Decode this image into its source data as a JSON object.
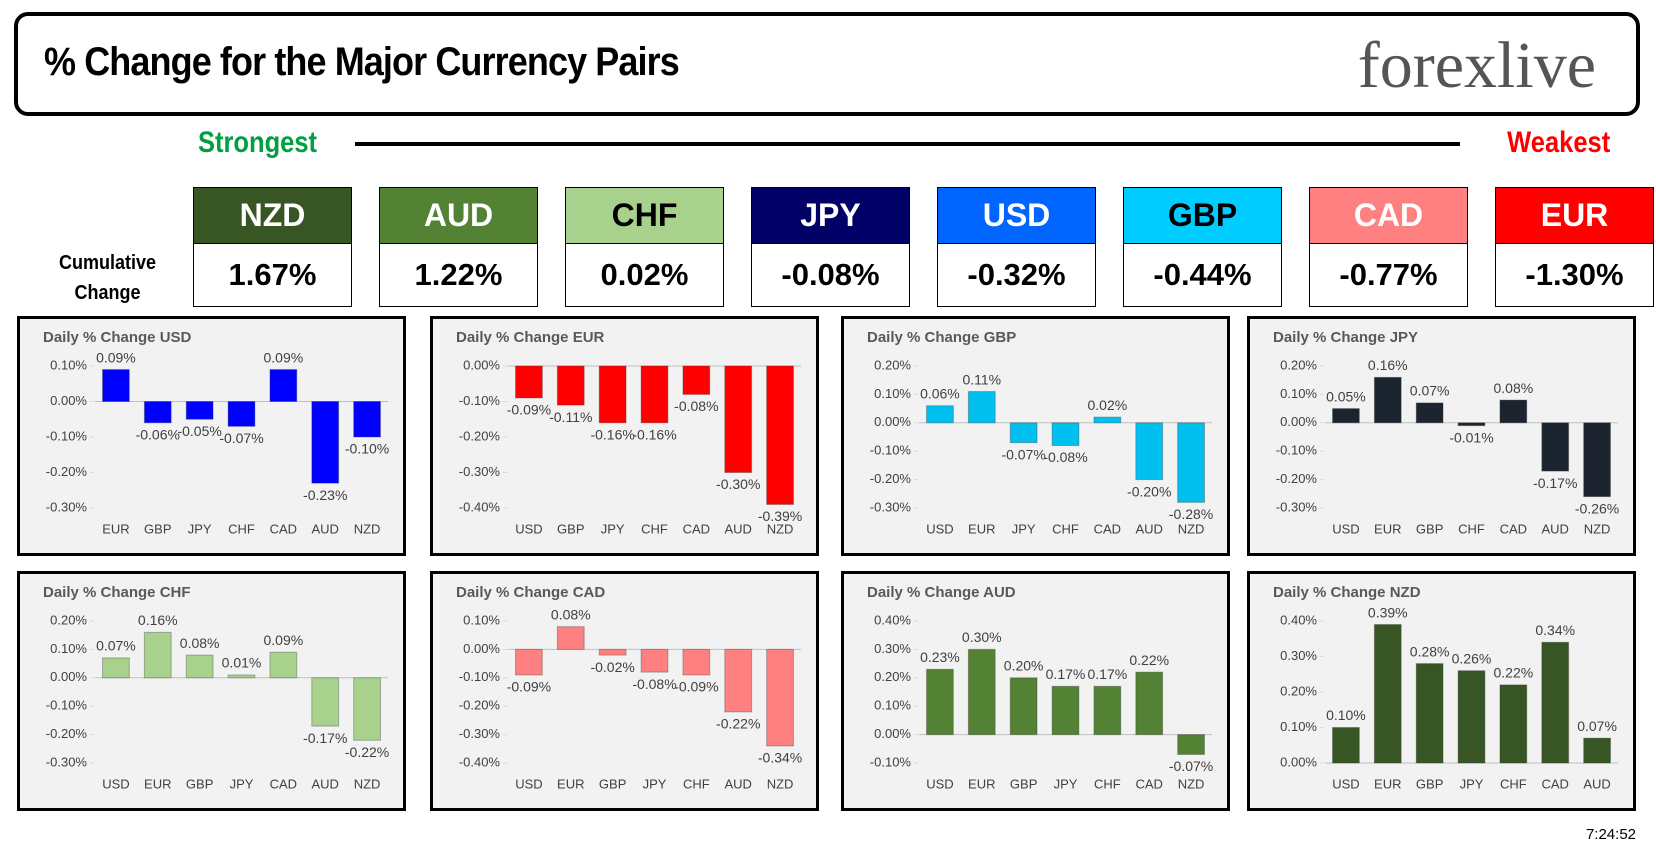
{
  "header": {
    "title": "% Change for the Major Currency Pairs",
    "logo": "forexlive"
  },
  "strength": {
    "strongest": "Strongest",
    "weakest": "Weakest",
    "row_label": "Cumulative Change",
    "currencies": [
      {
        "name": "NZD",
        "value": "1.67%",
        "color": "#375623",
        "text_color": "#ffffff"
      },
      {
        "name": "AUD",
        "value": "1.22%",
        "color": "#548235",
        "text_color": "#ffffff"
      },
      {
        "name": "CHF",
        "value": "0.02%",
        "color": "#a9d18e",
        "text_color": "#000000"
      },
      {
        "name": "JPY",
        "value": "-0.08%",
        "color": "#000066",
        "text_color": "#ffffff"
      },
      {
        "name": "USD",
        "value": "-0.32%",
        "color": "#0066ff",
        "text_color": "#ffffff"
      },
      {
        "name": "GBP",
        "value": "-0.44%",
        "color": "#00ccff",
        "text_color": "#000000"
      },
      {
        "name": "CAD",
        "value": "-0.77%",
        "color": "#ff8080",
        "text_color": "#ffffff"
      },
      {
        "name": "EUR",
        "value": "-1.30%",
        "color": "#ff0000",
        "text_color": "#ffffff"
      }
    ]
  },
  "chart_data": [
    {
      "type": "bar",
      "title": "Daily % Change USD",
      "color": "#0000ff",
      "categories": [
        "EUR",
        "GBP",
        "JPY",
        "CHF",
        "CAD",
        "AUD",
        "NZD"
      ],
      "values": [
        0.09,
        -0.06,
        -0.05,
        -0.07,
        0.09,
        -0.23,
        -0.1
      ],
      "value_labels": [
        "0.09%",
        "-0.06%",
        "-0.05%",
        "-0.07%",
        "0.09%",
        "-0.23%",
        "-0.10%"
      ],
      "ylim": [
        -0.3,
        0.1
      ],
      "yticks": [
        {
          "value": 0.1,
          "label": "0.10%"
        },
        {
          "value": 0,
          "label": "0.00%"
        },
        {
          "value": -0.1,
          "label": "-0.10%"
        },
        {
          "value": -0.2,
          "label": "-0.20%"
        },
        {
          "value": -0.3,
          "label": "-0.30%"
        }
      ]
    },
    {
      "type": "bar",
      "title": "Daily % Change EUR",
      "color": "#ff0000",
      "categories": [
        "USD",
        "GBP",
        "JPY",
        "CHF",
        "CAD",
        "AUD",
        "NZD"
      ],
      "values": [
        -0.09,
        -0.11,
        -0.16,
        -0.16,
        -0.08,
        -0.3,
        -0.39
      ],
      "value_labels": [
        "-0.09%",
        "-0.11%",
        "-0.16%",
        "-0.16%",
        "-0.08%",
        "-0.30%",
        "-0.39%"
      ],
      "ylim": [
        -0.4,
        0
      ],
      "yticks": [
        {
          "value": 0,
          "label": "0.00%"
        },
        {
          "value": -0.1,
          "label": "-0.10%"
        },
        {
          "value": -0.2,
          "label": "-0.20%"
        },
        {
          "value": -0.3,
          "label": "-0.30%"
        },
        {
          "value": -0.4,
          "label": "-0.40%"
        }
      ]
    },
    {
      "type": "bar",
      "title": "Daily % Change GBP",
      "color": "#00c0f0",
      "categories": [
        "USD",
        "EUR",
        "JPY",
        "CHF",
        "CAD",
        "AUD",
        "NZD"
      ],
      "values": [
        0.06,
        0.11,
        -0.07,
        -0.08,
        0.02,
        -0.2,
        -0.28
      ],
      "value_labels": [
        "0.06%",
        "0.11%",
        "-0.07%",
        "-0.08%",
        "0.02%",
        "-0.20%",
        "-0.28%"
      ],
      "ylim": [
        -0.3,
        0.2
      ],
      "yticks": [
        {
          "value": 0.2,
          "label": "0.20%"
        },
        {
          "value": 0.1,
          "label": "0.10%"
        },
        {
          "value": 0,
          "label": "0.00%"
        },
        {
          "value": -0.1,
          "label": "-0.10%"
        },
        {
          "value": -0.2,
          "label": "-0.20%"
        },
        {
          "value": -0.3,
          "label": "-0.30%"
        }
      ]
    },
    {
      "type": "bar",
      "title": "Daily % Change JPY",
      "color": "#1c2430",
      "categories": [
        "USD",
        "EUR",
        "GBP",
        "CHF",
        "CAD",
        "AUD",
        "NZD"
      ],
      "values": [
        0.05,
        0.16,
        0.07,
        -0.01,
        0.08,
        -0.17,
        -0.26
      ],
      "value_labels": [
        "0.05%",
        "0.16%",
        "0.07%",
        "-0.01%",
        "0.08%",
        "-0.17%",
        "-0.26%"
      ],
      "ylim": [
        -0.3,
        0.2
      ],
      "yticks": [
        {
          "value": 0.2,
          "label": "0.20%"
        },
        {
          "value": 0.1,
          "label": "0.10%"
        },
        {
          "value": 0,
          "label": "0.00%"
        },
        {
          "value": -0.1,
          "label": "-0.10%"
        },
        {
          "value": -0.2,
          "label": "-0.20%"
        },
        {
          "value": -0.3,
          "label": "-0.30%"
        }
      ]
    },
    {
      "type": "bar",
      "title": "Daily % Change CHF",
      "color": "#a9d18e",
      "categories": [
        "USD",
        "EUR",
        "GBP",
        "JPY",
        "CAD",
        "AUD",
        "NZD"
      ],
      "values": [
        0.07,
        0.16,
        0.08,
        0.01,
        0.09,
        -0.17,
        -0.22
      ],
      "value_labels": [
        "0.07%",
        "0.16%",
        "0.08%",
        "0.01%",
        "0.09%",
        "-0.17%",
        "-0.22%"
      ],
      "ylim": [
        -0.3,
        0.2
      ],
      "yticks": [
        {
          "value": 0.2,
          "label": "0.20%"
        },
        {
          "value": 0.1,
          "label": "0.10%"
        },
        {
          "value": 0,
          "label": "0.00%"
        },
        {
          "value": -0.1,
          "label": "-0.10%"
        },
        {
          "value": -0.2,
          "label": "-0.20%"
        },
        {
          "value": -0.3,
          "label": "-0.30%"
        }
      ]
    },
    {
      "type": "bar",
      "title": "Daily % Change CAD",
      "color": "#ff8080",
      "categories": [
        "USD",
        "EUR",
        "GBP",
        "JPY",
        "CHF",
        "AUD",
        "NZD"
      ],
      "values": [
        -0.09,
        0.08,
        -0.02,
        -0.08,
        -0.09,
        -0.22,
        -0.34
      ],
      "value_labels": [
        "-0.09%",
        "0.08%",
        "-0.02%",
        "-0.08%",
        "-0.09%",
        "-0.22%",
        "-0.34%"
      ],
      "ylim": [
        -0.4,
        0.1
      ],
      "yticks": [
        {
          "value": 0.1,
          "label": "0.10%"
        },
        {
          "value": 0,
          "label": "0.00%"
        },
        {
          "value": -0.1,
          "label": "-0.10%"
        },
        {
          "value": -0.2,
          "label": "-0.20%"
        },
        {
          "value": -0.3,
          "label": "-0.30%"
        },
        {
          "value": -0.4,
          "label": "-0.40%"
        }
      ]
    },
    {
      "type": "bar",
      "title": "Daily % Change AUD",
      "color": "#548235",
      "categories": [
        "USD",
        "EUR",
        "GBP",
        "JPY",
        "CHF",
        "CAD",
        "NZD"
      ],
      "values": [
        0.23,
        0.3,
        0.2,
        0.17,
        0.17,
        0.22,
        -0.07
      ],
      "value_labels": [
        "0.23%",
        "0.30%",
        "0.20%",
        "0.17%",
        "0.17%",
        "0.22%",
        "-0.07%"
      ],
      "ylim": [
        -0.1,
        0.4
      ],
      "yticks": [
        {
          "value": 0.4,
          "label": "0.40%"
        },
        {
          "value": 0.3,
          "label": "0.30%"
        },
        {
          "value": 0.2,
          "label": "0.20%"
        },
        {
          "value": 0.1,
          "label": "0.10%"
        },
        {
          "value": 0,
          "label": "0.00%"
        },
        {
          "value": -0.1,
          "label": "-0.10%"
        }
      ]
    },
    {
      "type": "bar",
      "title": "Daily % Change NZD",
      "color": "#375623",
      "categories": [
        "USD",
        "EUR",
        "GBP",
        "JPY",
        "CHF",
        "CAD",
        "AUD"
      ],
      "values": [
        0.1,
        0.39,
        0.28,
        0.26,
        0.22,
        0.34,
        0.07
      ],
      "value_labels": [
        "0.10%",
        "0.39%",
        "0.28%",
        "0.26%",
        "0.22%",
        "0.34%",
        "0.07%"
      ],
      "ylim": [
        0,
        0.4
      ],
      "yticks": [
        {
          "value": 0.4,
          "label": "0.40%"
        },
        {
          "value": 0.3,
          "label": "0.30%"
        },
        {
          "value": 0.2,
          "label": "0.20%"
        },
        {
          "value": 0.1,
          "label": "0.10%"
        },
        {
          "value": 0,
          "label": "0.00%"
        }
      ]
    }
  ],
  "timestamp": "7:24:52"
}
